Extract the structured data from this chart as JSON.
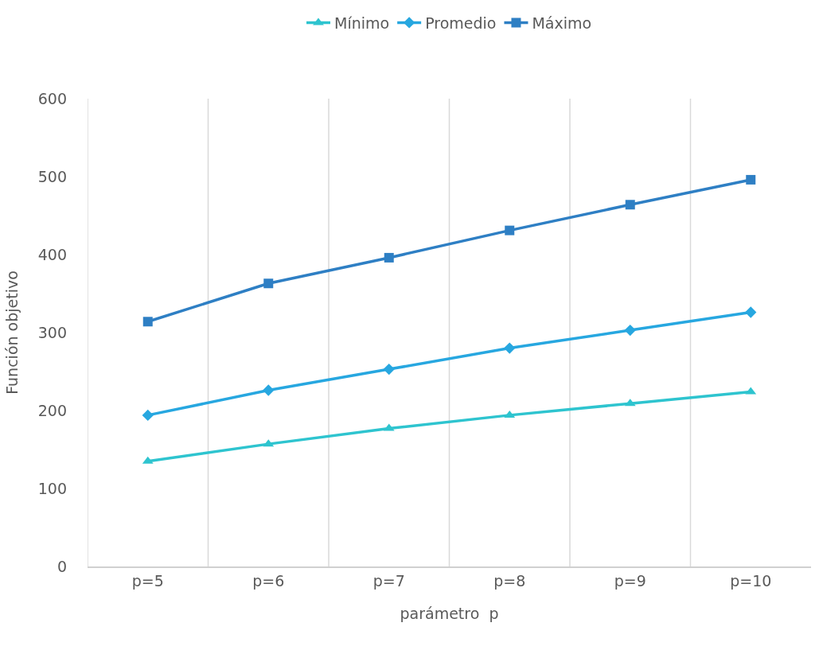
{
  "chart_data": {
    "type": "line",
    "xlabel": "parámetro  p",
    "ylabel": "Función objetivo",
    "categories": [
      "p=5",
      "p=6",
      "p=7",
      "p=8",
      "p=9",
      "p=10"
    ],
    "series": [
      {
        "name": "Mínimo",
        "color": "#2ec4cf",
        "marker": "triangle",
        "values": [
          135,
          157,
          177,
          194,
          209,
          224
        ]
      },
      {
        "name": "Promedio",
        "color": "#27a7e0",
        "marker": "diamond",
        "values": [
          194,
          226,
          253,
          280,
          303,
          326
        ]
      },
      {
        "name": "Máximo",
        "color": "#2e7fc4",
        "marker": "square",
        "values": [
          314,
          363,
          396,
          431,
          464,
          496
        ]
      }
    ],
    "ylim": [
      0,
      600
    ],
    "yticks": [
      0,
      100,
      200,
      300,
      400,
      500,
      600
    ],
    "grid": "x",
    "legend": "top",
    "line_style": "solid"
  }
}
